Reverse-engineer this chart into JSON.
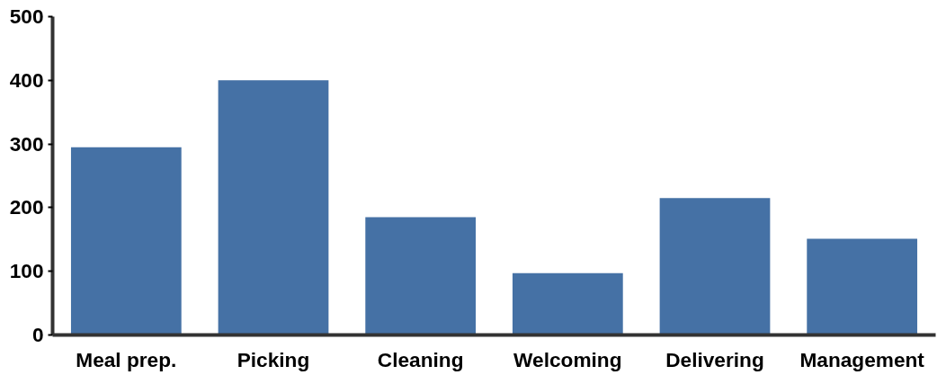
{
  "chart_data": {
    "type": "bar",
    "categories": [
      "Meal prep.",
      "Picking",
      "Cleaning",
      "Welcoming",
      "Delivering",
      "Management"
    ],
    "values": [
      295,
      400,
      185,
      97,
      215,
      151
    ],
    "color": "#4571a5",
    "ylim": [
      0,
      500
    ],
    "yticks": [
      0,
      100,
      200,
      300,
      400,
      500
    ],
    "grid": false
  }
}
